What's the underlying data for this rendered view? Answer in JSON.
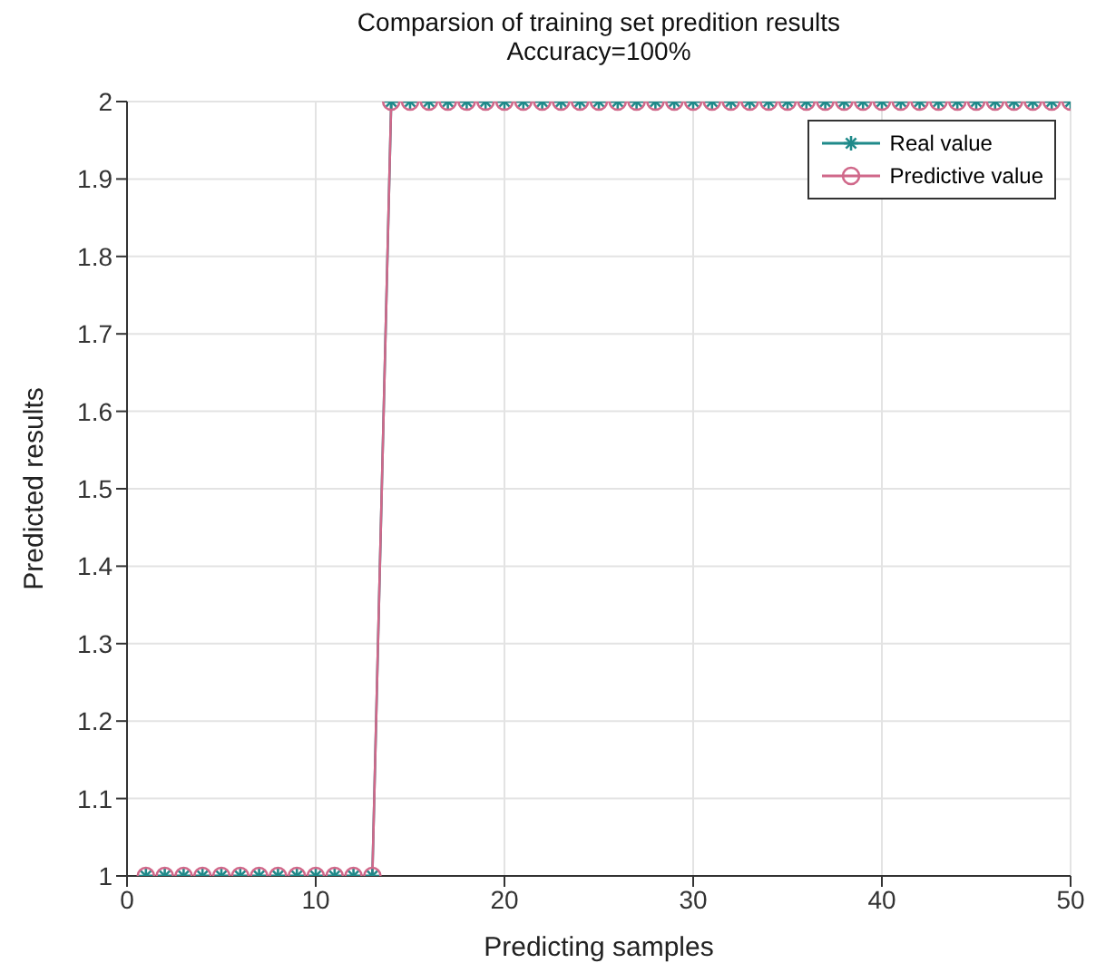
{
  "chart_data": {
    "type": "line",
    "title": "Comparsion of training set predition results",
    "subtitle": "Accuracy=100%",
    "xlabel": "Predicting samples",
    "ylabel": "Predicted results",
    "x": [
      1,
      2,
      3,
      4,
      5,
      6,
      7,
      8,
      9,
      10,
      11,
      12,
      13,
      14,
      15,
      16,
      17,
      18,
      19,
      20,
      21,
      22,
      23,
      24,
      25,
      26,
      27,
      28,
      29,
      30,
      31,
      32,
      33,
      34,
      35,
      36,
      37,
      38,
      39,
      40,
      41,
      42,
      43,
      44,
      45,
      46,
      47,
      48,
      49,
      50
    ],
    "series": [
      {
        "name": "Real value",
        "color": "#1f8a8a",
        "marker": "cross",
        "values": [
          1,
          1,
          1,
          1,
          1,
          1,
          1,
          1,
          1,
          1,
          1,
          1,
          1,
          2,
          2,
          2,
          2,
          2,
          2,
          2,
          2,
          2,
          2,
          2,
          2,
          2,
          2,
          2,
          2,
          2,
          2,
          2,
          2,
          2,
          2,
          2,
          2,
          2,
          2,
          2,
          2,
          2,
          2,
          2,
          2,
          2,
          2,
          2,
          2,
          2
        ]
      },
      {
        "name": "Predictive value",
        "color": "#d0688a",
        "marker": "circle",
        "values": [
          1,
          1,
          1,
          1,
          1,
          1,
          1,
          1,
          1,
          1,
          1,
          1,
          1,
          2,
          2,
          2,
          2,
          2,
          2,
          2,
          2,
          2,
          2,
          2,
          2,
          2,
          2,
          2,
          2,
          2,
          2,
          2,
          2,
          2,
          2,
          2,
          2,
          2,
          2,
          2,
          2,
          2,
          2,
          2,
          2,
          2,
          2,
          2,
          2,
          2
        ]
      }
    ],
    "xlim": [
      0,
      50
    ],
    "xticks": [
      0,
      10,
      20,
      30,
      40,
      50
    ],
    "ylim": [
      1,
      2
    ],
    "yticks": [
      1,
      1.1,
      1.2,
      1.3,
      1.4,
      1.5,
      1.6,
      1.7,
      1.8,
      1.9,
      2
    ],
    "grid": true,
    "legend": "top right"
  }
}
